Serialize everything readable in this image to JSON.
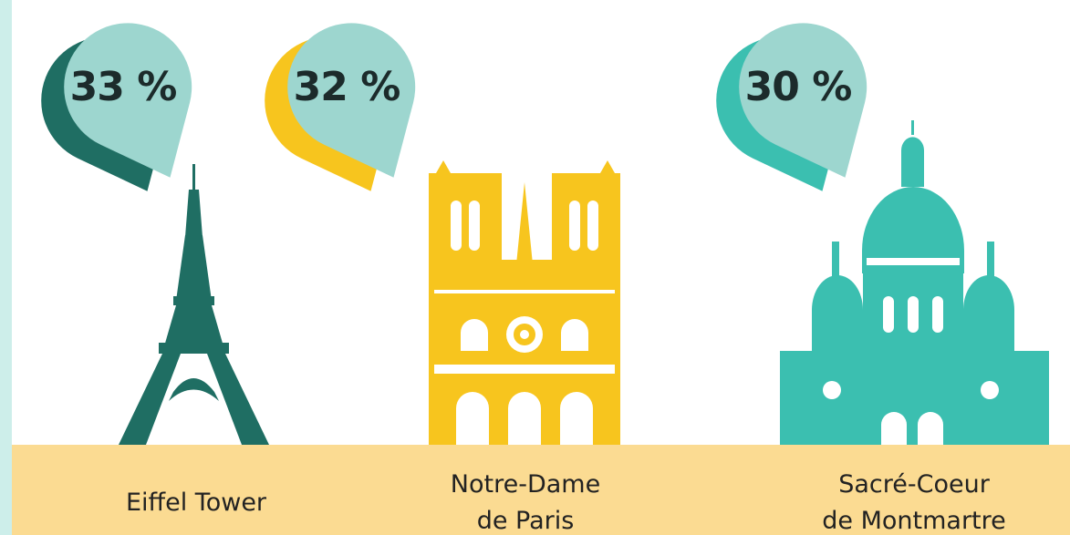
{
  "items": [
    {
      "percent": "33 %",
      "name": [
        "Eiffel Tower"
      ]
    },
    {
      "percent": "32 %",
      "name": [
        "Notre-Dame",
        "de Paris"
      ]
    },
    {
      "percent": "30 %",
      "name": [
        "Sacré-Coeur",
        "de Montmartre"
      ]
    }
  ]
}
